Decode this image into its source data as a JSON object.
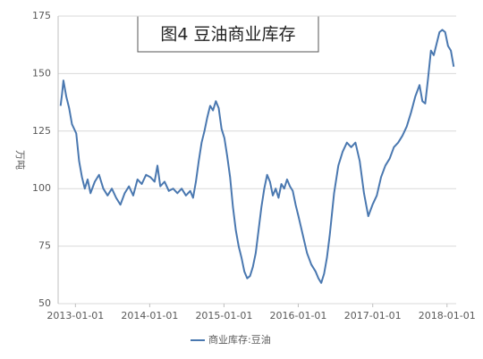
{
  "chart_data": {
    "type": "line",
    "title": "图4 豆油商业库存",
    "y_label": "万吨",
    "x": [
      "2012-10-20",
      "2012-10-27",
      "2012-11-03",
      "2012-11-17",
      "2012-12-01",
      "2012-12-15",
      "2013-01-05",
      "2013-01-19",
      "2013-02-02",
      "2013-02-16",
      "2013-03-02",
      "2013-03-16",
      "2013-04-06",
      "2013-04-27",
      "2013-05-18",
      "2013-06-08",
      "2013-06-29",
      "2013-07-20",
      "2013-08-10",
      "2013-08-31",
      "2013-09-21",
      "2013-10-12",
      "2013-11-02",
      "2013-11-23",
      "2013-12-14",
      "2014-01-04",
      "2014-01-25",
      "2014-02-08",
      "2014-02-22",
      "2014-03-15",
      "2014-04-05",
      "2014-04-26",
      "2014-05-17",
      "2014-06-07",
      "2014-06-28",
      "2014-07-19",
      "2014-08-02",
      "2014-08-16",
      "2014-08-30",
      "2014-09-13",
      "2014-09-27",
      "2014-10-11",
      "2014-10-25",
      "2014-11-08",
      "2014-11-22",
      "2014-12-06",
      "2014-12-20",
      "2015-01-03",
      "2015-01-17",
      "2015-01-31",
      "2015-02-14",
      "2015-02-28",
      "2015-03-14",
      "2015-03-28",
      "2015-04-11",
      "2015-04-25",
      "2015-05-09",
      "2015-05-23",
      "2015-06-06",
      "2015-06-20",
      "2015-07-04",
      "2015-07-18",
      "2015-08-01",
      "2015-08-15",
      "2015-08-29",
      "2015-09-12",
      "2015-09-26",
      "2015-10-10",
      "2015-10-24",
      "2015-11-07",
      "2015-11-21",
      "2015-12-05",
      "2015-12-19",
      "2016-01-02",
      "2016-01-23",
      "2016-02-13",
      "2016-03-05",
      "2016-03-26",
      "2016-04-09",
      "2016-04-23",
      "2016-05-07",
      "2016-05-21",
      "2016-06-04",
      "2016-06-25",
      "2016-07-16",
      "2016-08-06",
      "2016-08-27",
      "2016-09-17",
      "2016-10-08",
      "2016-10-29",
      "2016-11-19",
      "2016-12-10",
      "2016-12-31",
      "2017-01-21",
      "2017-02-11",
      "2017-03-04",
      "2017-03-25",
      "2017-04-15",
      "2017-05-06",
      "2017-05-27",
      "2017-06-17",
      "2017-07-08",
      "2017-07-29",
      "2017-08-19",
      "2017-09-02",
      "2017-09-16",
      "2017-09-30",
      "2017-10-14",
      "2017-10-28",
      "2017-11-11",
      "2017-11-25",
      "2017-12-09",
      "2017-12-23",
      "2018-01-06",
      "2018-01-20",
      "2018-02-03"
    ],
    "series": [
      {
        "name": "商业库存:豆油",
        "color": "#4a78b0",
        "values": [
          136,
          141,
          147,
          140,
          135,
          128,
          124,
          112,
          105,
          100,
          104,
          98,
          103,
          106,
          100,
          97,
          100,
          96,
          93,
          98,
          101,
          97,
          104,
          102,
          106,
          105,
          103,
          110,
          101,
          103,
          99,
          100,
          98,
          100,
          97,
          99,
          96,
          103,
          112,
          120,
          125,
          131,
          136,
          134,
          138,
          135,
          126,
          122,
          114,
          105,
          92,
          82,
          75,
          70,
          64,
          61,
          62,
          66,
          72,
          82,
          92,
          100,
          106,
          103,
          97,
          100,
          96,
          102,
          100,
          104,
          101,
          99,
          93,
          88,
          80,
          72,
          67,
          64,
          61,
          59,
          63,
          70,
          80,
          98,
          110,
          116,
          120,
          118,
          120,
          112,
          98,
          88,
          93,
          97,
          105,
          110,
          113,
          118,
          120,
          123,
          127,
          133,
          140,
          145,
          138,
          137,
          148,
          160,
          158,
          163,
          168,
          169,
          168,
          162,
          160,
          153
        ]
      }
    ],
    "xlim": [
      "2012-10-08",
      "2018-02-15"
    ],
    "xticks": [
      "2013-01-01",
      "2014-01-01",
      "2015-01-01",
      "2016-01-01",
      "2017-01-01",
      "2018-01-01"
    ],
    "ylim": [
      50,
      175
    ],
    "yticks": [
      50,
      75,
      100,
      125,
      150,
      175
    ],
    "grid": true
  }
}
